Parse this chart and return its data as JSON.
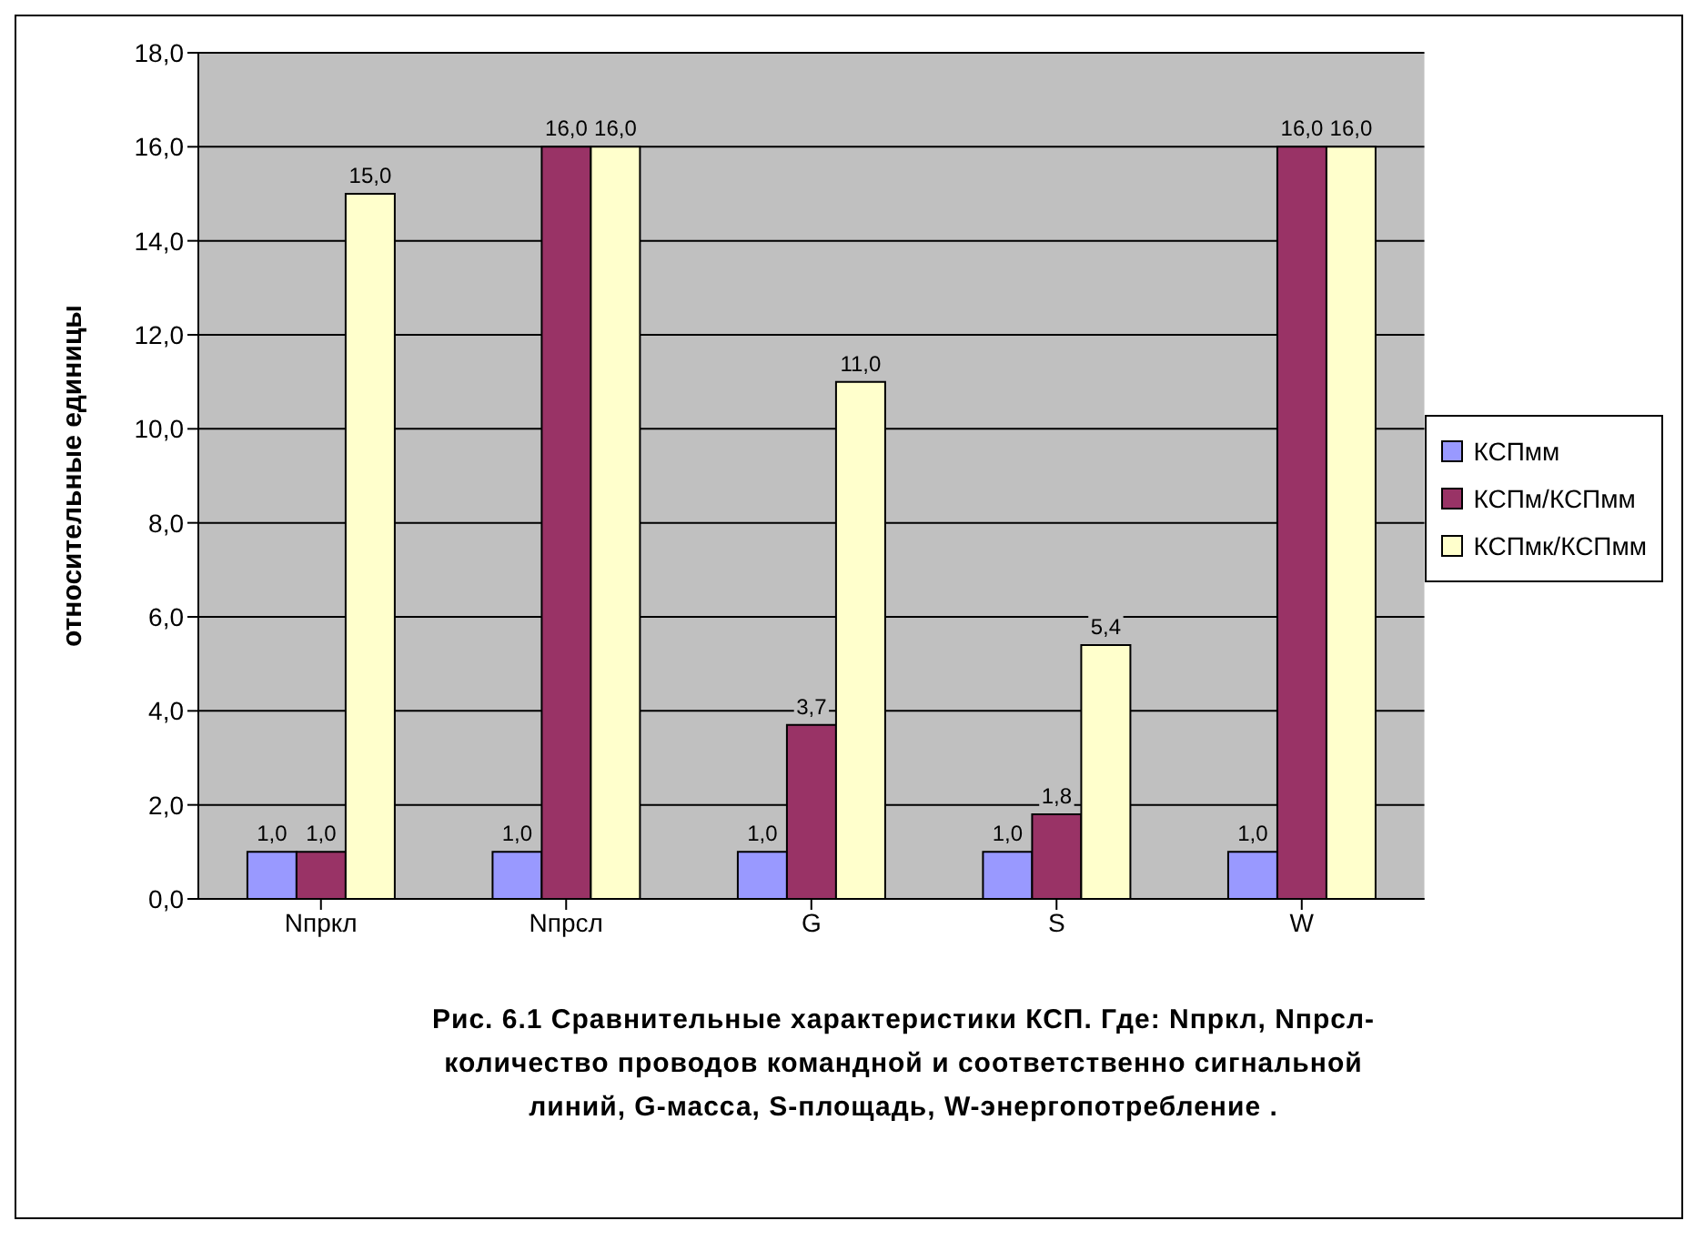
{
  "chart_data": {
    "type": "bar",
    "ylabel": "относительные единицы",
    "categories": [
      "Nпркл",
      "Nпрсл",
      "G",
      "S",
      "W"
    ],
    "series": [
      {
        "name": "КСПмм",
        "color": "#9999ff",
        "values": [
          1,
          1,
          1,
          1,
          1
        ],
        "value_labels": [
          "1,0",
          "1,0",
          "1,0",
          "1,0",
          "1,0"
        ]
      },
      {
        "name": "КСПм/КСПмм",
        "color": "#993366",
        "values": [
          1,
          16,
          3.7,
          1.8,
          16
        ],
        "value_labels": [
          "1,0",
          "16,0",
          "3,7",
          "1,8",
          "16,0"
        ]
      },
      {
        "name": "КСПмк/КСПмм",
        "color": "#ffffcc",
        "values": [
          15,
          16,
          11,
          5.4,
          16
        ],
        "value_labels": [
          "15,0",
          "16,0",
          "11,0",
          "5,4",
          "16,0"
        ]
      }
    ],
    "ylim": [
      0,
      18
    ],
    "yticks": [
      {
        "value": 0,
        "label": "0,0"
      },
      {
        "value": 2,
        "label": "2,0"
      },
      {
        "value": 4,
        "label": "4,0"
      },
      {
        "value": 6,
        "label": "6,0"
      },
      {
        "value": 8,
        "label": "8,0"
      },
      {
        "value": 10,
        "label": "10,0"
      },
      {
        "value": 12,
        "label": "12,0"
      },
      {
        "value": 14,
        "label": "14,0"
      },
      {
        "value": 16,
        "label": "16,0"
      },
      {
        "value": 18,
        "label": "18,0"
      }
    ],
    "grid": "y",
    "legend": "right",
    "annotations": [
      "Рис. 6.1 Сравнительные характеристики КСП. Где: Nпркл, Nпрсл-количество проводов командной и соответственно сигнальной линий, G-масса, S-площадь, W-энергопотребление ."
    ]
  }
}
